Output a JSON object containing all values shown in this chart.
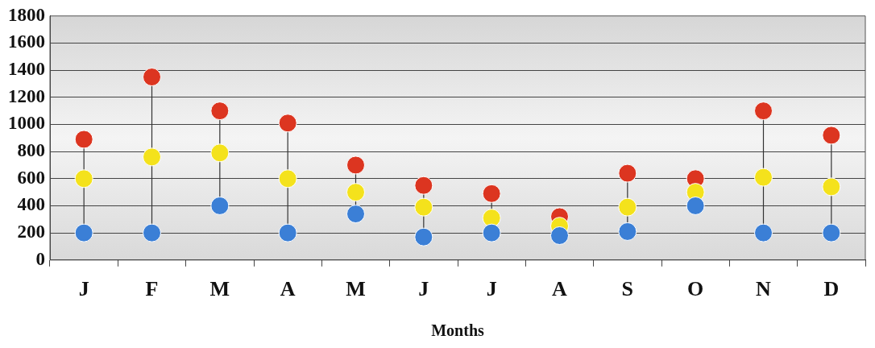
{
  "chart_data": {
    "type": "scatter",
    "xlabel": "Months",
    "categories": [
      "J",
      "F",
      "M",
      "A",
      "M",
      "J",
      "J",
      "A",
      "S",
      "O",
      "N",
      "D"
    ],
    "series": [
      {
        "color": "#3b7fd6",
        "values": [
          200,
          200,
          400,
          200,
          340,
          170,
          200,
          180,
          210,
          400,
          200,
          200
        ]
      },
      {
        "color": "#f4e21c",
        "values": [
          600,
          760,
          790,
          600,
          500,
          390,
          310,
          250,
          390,
          500,
          610,
          540
        ]
      },
      {
        "color": "#dc3520",
        "values": [
          890,
          1350,
          1100,
          1010,
          700,
          550,
          490,
          320,
          640,
          600,
          1100,
          920
        ]
      }
    ],
    "ylim": [
      0,
      1800
    ],
    "yticks": [
      0,
      200,
      400,
      600,
      800,
      1000,
      1200,
      1400,
      1600,
      1800
    ],
    "grid": "y",
    "legend": false,
    "marker": "circle"
  }
}
